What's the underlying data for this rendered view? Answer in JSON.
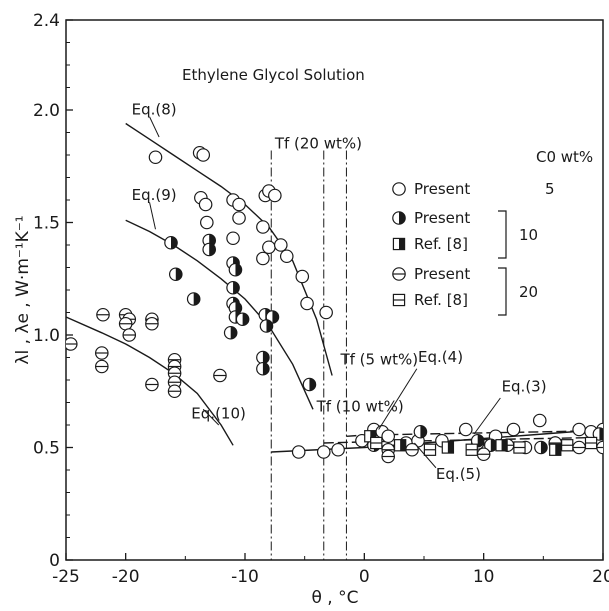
{
  "chart_data": {
    "type": "scatter",
    "title": "Ethylene Glycol Solution",
    "xlabel": "θ , °C",
    "ylabel": "λl , λe , W·m⁻¹K⁻¹",
    "xlim": [
      -25,
      20
    ],
    "ylim": [
      0,
      2.4
    ],
    "xticks": [
      -25,
      -20,
      -10,
      0,
      10,
      20
    ],
    "xtick_labels": [
      "-25",
      "-20",
      "-10",
      "0",
      "10",
      "20"
    ],
    "yticks": [
      0,
      0.5,
      1.0,
      1.5,
      2.0,
      2.4
    ],
    "ytick_labels": [
      "0",
      "0.5",
      "1.0",
      "1.5",
      "2.0",
      "2.4"
    ],
    "grid": false,
    "legend": {
      "placement": "upper-right",
      "header": "C0 wt%",
      "entries": [
        {
          "label": "Present",
          "marker": "open-circle",
          "group": "5"
        },
        {
          "label": "Present",
          "marker": "half-filled-circle",
          "group": "10"
        },
        {
          "label": "Ref. [8]",
          "marker": "half-filled-square",
          "group": "10"
        },
        {
          "label": "Present",
          "marker": "barred-circle",
          "group": "20"
        },
        {
          "label": "Ref. [8]",
          "marker": "barred-square",
          "group": "20"
        }
      ]
    },
    "annotations": [
      {
        "text": "Eq.(8)",
        "x": -19.5,
        "y": 1.98
      },
      {
        "text": "Eq.(9)",
        "x": -19.5,
        "y": 1.6
      },
      {
        "text": "Eq.(10)",
        "x": -14.5,
        "y": 0.63
      },
      {
        "text": "Tf (20 wt%)",
        "x": -7.5,
        "y": 1.83
      },
      {
        "text": "Tf (5 wt%)",
        "x": -2.0,
        "y": 0.87
      },
      {
        "text": "Tf (10 wt%)",
        "x": -4.0,
        "y": 0.66
      },
      {
        "text": "Eq.(4)",
        "x": 4.5,
        "y": 0.88
      },
      {
        "text": "Eq.(3)",
        "x": 11.5,
        "y": 0.75
      },
      {
        "text": "Eq.(5)",
        "x": 6.0,
        "y": 0.36
      }
    ],
    "freezing_lines": [
      {
        "label": "Tf (20 wt%)",
        "x": -7.8
      },
      {
        "label": "Tf (10 wt%)",
        "x": -3.4
      },
      {
        "label": "Tf (5 wt%)",
        "x": -1.5
      }
    ],
    "curves": [
      {
        "label": "Eq.(8)",
        "x": [
          -20,
          -18,
          -16,
          -14,
          -12,
          -10,
          -8,
          -6,
          -4,
          -2.7
        ],
        "y": [
          1.94,
          1.87,
          1.8,
          1.73,
          1.66,
          1.58,
          1.48,
          1.33,
          1.07,
          0.82
        ]
      },
      {
        "label": "Eq.(9)",
        "x": [
          -20,
          -18,
          -16,
          -14,
          -12,
          -10,
          -8,
          -6,
          -4.3
        ],
        "y": [
          1.51,
          1.46,
          1.4,
          1.33,
          1.25,
          1.16,
          1.04,
          0.87,
          0.67
        ]
      },
      {
        "label": "Eq.(10)",
        "x": [
          -25,
          -22,
          -20,
          -18,
          -16,
          -14,
          -12,
          -11
        ],
        "y": [
          1.08,
          1.01,
          0.96,
          0.9,
          0.83,
          0.74,
          0.6,
          0.51
        ]
      },
      {
        "label": "Eq.(3)",
        "x": [
          -7.8,
          0,
          5,
          10,
          15,
          20
        ],
        "y": [
          0.48,
          0.5,
          0.52,
          0.54,
          0.56,
          0.58
        ]
      },
      {
        "label": "Eq.(4)",
        "x": [
          -1.5,
          0,
          5,
          10,
          15,
          20
        ],
        "y": [
          0.55,
          0.555,
          0.56,
          0.565,
          0.57,
          0.575
        ]
      },
      {
        "label": "Eq.(5)",
        "x": [
          -3.4,
          0,
          5,
          10,
          15,
          20
        ],
        "y": [
          0.52,
          0.525,
          0.53,
          0.535,
          0.54,
          0.545
        ]
      }
    ],
    "series": [
      {
        "name": "Present 5 wt%",
        "marker": "open-circle",
        "points": [
          {
            "x": -17.5,
            "y": 1.79
          },
          {
            "x": -13.8,
            "y": 1.81
          },
          {
            "x": -13.5,
            "y": 1.8
          },
          {
            "x": -13.7,
            "y": 1.61
          },
          {
            "x": -13.3,
            "y": 1.58
          },
          {
            "x": -13.2,
            "y": 1.5
          },
          {
            "x": -11,
            "y": 1.6
          },
          {
            "x": -10.5,
            "y": 1.58
          },
          {
            "x": -11,
            "y": 1.43
          },
          {
            "x": -10.5,
            "y": 1.52
          },
          {
            "x": -8.3,
            "y": 1.62
          },
          {
            "x": -8,
            "y": 1.64
          },
          {
            "x": -7.5,
            "y": 1.62
          },
          {
            "x": -8.5,
            "y": 1.48
          },
          {
            "x": -8,
            "y": 1.39
          },
          {
            "x": -8.5,
            "y": 1.34
          },
          {
            "x": -7,
            "y": 1.4
          },
          {
            "x": -6.5,
            "y": 1.35
          },
          {
            "x": -5.2,
            "y": 1.26
          },
          {
            "x": -4.8,
            "y": 1.14
          },
          {
            "x": -3.2,
            "y": 1.1
          },
          {
            "x": -5.5,
            "y": 0.48
          },
          {
            "x": -3.4,
            "y": 0.48
          },
          {
            "x": -2.2,
            "y": 0.49
          },
          {
            "x": -0.2,
            "y": 0.53
          },
          {
            "x": 0.8,
            "y": 0.58
          },
          {
            "x": 1.5,
            "y": 0.57
          },
          {
            "x": 2,
            "y": 0.55
          },
          {
            "x": 3.5,
            "y": 0.52
          },
          {
            "x": 4.5,
            "y": 0.53
          },
          {
            "x": 6.5,
            "y": 0.53
          },
          {
            "x": 8.5,
            "y": 0.58
          },
          {
            "x": 9.5,
            "y": 0.52
          },
          {
            "x": 11,
            "y": 0.55
          },
          {
            "x": 12.5,
            "y": 0.58
          },
          {
            "x": 13.5,
            "y": 0.5
          },
          {
            "x": 14.7,
            "y": 0.62
          },
          {
            "x": 16,
            "y": 0.52
          },
          {
            "x": 18,
            "y": 0.58
          },
          {
            "x": 19,
            "y": 0.57
          },
          {
            "x": 20,
            "y": 0.58
          }
        ]
      },
      {
        "name": "Present 10 wt%",
        "marker": "half-filled-circle",
        "points": [
          {
            "x": -16.2,
            "y": 1.41
          },
          {
            "x": -15.8,
            "y": 1.27
          },
          {
            "x": -14.3,
            "y": 1.16
          },
          {
            "x": -13,
            "y": 1.42
          },
          {
            "x": -13,
            "y": 1.38
          },
          {
            "x": -11,
            "y": 1.32
          },
          {
            "x": -10.8,
            "y": 1.29
          },
          {
            "x": -11,
            "y": 1.21
          },
          {
            "x": -11,
            "y": 1.14
          },
          {
            "x": -10.8,
            "y": 1.12
          },
          {
            "x": -10.8,
            "y": 1.08
          },
          {
            "x": -11.2,
            "y": 1.01
          },
          {
            "x": -10.2,
            "y": 1.07
          },
          {
            "x": -8.3,
            "y": 1.09
          },
          {
            "x": -7.7,
            "y": 1.08
          },
          {
            "x": -8.2,
            "y": 1.04
          },
          {
            "x": -8.5,
            "y": 0.9
          },
          {
            "x": -8.5,
            "y": 0.85
          },
          {
            "x": -4.6,
            "y": 0.78
          },
          {
            "x": 0.8,
            "y": 0.51
          },
          {
            "x": 4.7,
            "y": 0.57
          },
          {
            "x": 9.5,
            "y": 0.53
          },
          {
            "x": 10.6,
            "y": 0.51
          },
          {
            "x": 14.8,
            "y": 0.5
          },
          {
            "x": 19.7,
            "y": 0.56
          }
        ]
      },
      {
        "name": "Present 20 wt%",
        "marker": "barred-circle",
        "points": [
          {
            "x": -24.6,
            "y": 0.96
          },
          {
            "x": -21.9,
            "y": 1.09
          },
          {
            "x": -22,
            "y": 0.92
          },
          {
            "x": -22,
            "y": 0.86
          },
          {
            "x": -20,
            "y": 1.09
          },
          {
            "x": -19.7,
            "y": 1.07
          },
          {
            "x": -20,
            "y": 1.05
          },
          {
            "x": -19.7,
            "y": 1.0
          },
          {
            "x": -17.8,
            "y": 1.07
          },
          {
            "x": -17.8,
            "y": 1.05
          },
          {
            "x": -17.8,
            "y": 0.78
          },
          {
            "x": -15.9,
            "y": 0.89
          },
          {
            "x": -15.9,
            "y": 0.86
          },
          {
            "x": -15.9,
            "y": 0.83
          },
          {
            "x": -15.9,
            "y": 0.79
          },
          {
            "x": -15.9,
            "y": 0.75
          },
          {
            "x": -12.1,
            "y": 0.82
          },
          {
            "x": 2,
            "y": 0.49
          },
          {
            "x": 2,
            "y": 0.46
          },
          {
            "x": 4,
            "y": 0.49
          },
          {
            "x": 10,
            "y": 0.47
          },
          {
            "x": 12,
            "y": 0.51
          },
          {
            "x": 16,
            "y": 0.52
          },
          {
            "x": 18,
            "y": 0.5
          },
          {
            "x": 20,
            "y": 0.5
          }
        ]
      },
      {
        "name": "Ref. [8] 10 wt%",
        "marker": "half-filled-square",
        "points": [
          {
            "x": 0.5,
            "y": 0.55
          },
          {
            "x": 3,
            "y": 0.51
          },
          {
            "x": 7,
            "y": 0.5
          },
          {
            "x": 11.5,
            "y": 0.51
          },
          {
            "x": 16,
            "y": 0.49
          }
        ]
      },
      {
        "name": "Ref. [8] 20 wt%",
        "marker": "barred-square",
        "points": [
          {
            "x": 1,
            "y": 0.52
          },
          {
            "x": 5.5,
            "y": 0.49
          },
          {
            "x": 9,
            "y": 0.49
          },
          {
            "x": 13,
            "y": 0.5
          },
          {
            "x": 17,
            "y": 0.51
          },
          {
            "x": 19,
            "y": 0.52
          }
        ]
      }
    ]
  }
}
